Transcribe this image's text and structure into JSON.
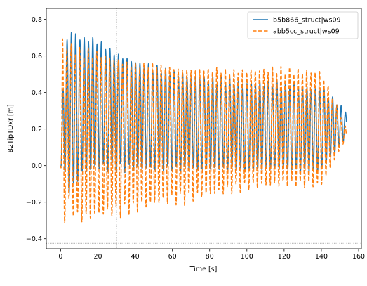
{
  "chart_data": {
    "type": "line",
    "title": "",
    "xlabel": "Time [s]",
    "ylabel": "B2TipTDxr [m]",
    "xlim": [
      -7.7,
      161.5
    ],
    "ylim": [
      -0.455,
      0.86
    ],
    "x_ticks": [
      0,
      20,
      40,
      60,
      80,
      100,
      120,
      140,
      160
    ],
    "y_ticks": [
      -0.4,
      -0.2,
      0.0,
      0.2,
      0.4,
      0.6,
      0.8
    ],
    "x_tick_labels": [
      "0",
      "20",
      "40",
      "60",
      "80",
      "100",
      "120",
      "140",
      "160"
    ],
    "y_tick_labels": [
      "−0.4",
      "−0.2",
      "0.0",
      "0.2",
      "0.4",
      "0.6",
      "0.8"
    ],
    "grid": false,
    "crosshair": {
      "x": 30,
      "y": -0.425
    },
    "legend_position": "top-right",
    "x_range": [
      0,
      153.5
    ],
    "oscillation_period_s": 2.3,
    "series": [
      {
        "name": "b5b866_struct|ws09",
        "color": "#1f77b4",
        "style": "solid",
        "start_value": 0.0,
        "envelope_time": [
          0,
          2,
          4,
          6,
          10,
          20,
          30,
          40,
          60,
          80,
          100,
          120,
          140,
          153.5
        ],
        "envelope_max": [
          0.0,
          0.72,
          0.75,
          0.8,
          0.74,
          0.72,
          0.65,
          0.6,
          0.54,
          0.5,
          0.48,
          0.47,
          0.45,
          0.3
        ],
        "envelope_min": [
          0.0,
          -0.1,
          -0.15,
          -0.2,
          -0.1,
          -0.05,
          -0.05,
          -0.05,
          -0.05,
          -0.05,
          -0.05,
          -0.05,
          -0.05,
          0.15
        ]
      },
      {
        "name": "abb5cc_struct|ws09",
        "color": "#ff7f0e",
        "style": "dashed",
        "start_value": 0.0,
        "envelope_time": [
          0,
          1,
          2,
          4,
          6,
          10,
          20,
          30,
          40,
          60,
          80,
          100,
          120,
          140,
          153.5
        ],
        "envelope_max": [
          0.0,
          0.74,
          0.72,
          0.72,
          0.7,
          0.68,
          0.66,
          0.63,
          0.6,
          0.58,
          0.56,
          0.56,
          0.56,
          0.55,
          0.2
        ],
        "envelope_min": [
          0.0,
          -0.4,
          -0.35,
          -0.25,
          -0.3,
          -0.35,
          -0.32,
          -0.3,
          -0.28,
          -0.23,
          -0.2,
          -0.15,
          -0.14,
          -0.14,
          0.15
        ]
      }
    ]
  }
}
